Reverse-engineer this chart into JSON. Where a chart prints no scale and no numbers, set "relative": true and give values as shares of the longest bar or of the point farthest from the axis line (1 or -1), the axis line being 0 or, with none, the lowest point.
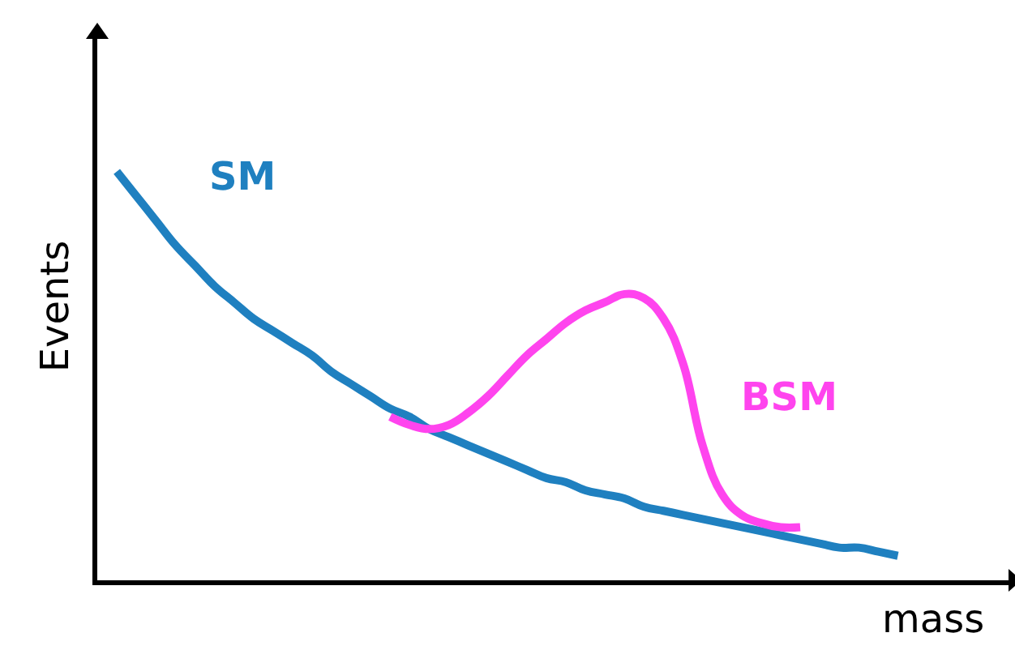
{
  "chart_data": {
    "type": "line",
    "relative": true,
    "xlabel": "mass",
    "ylabel": "Events",
    "grid": false,
    "legend": false,
    "marker": "none",
    "line_style": "solid",
    "categories": [
      null,
      null,
      null,
      null,
      null,
      null,
      null,
      null,
      null,
      null,
      null,
      null,
      null,
      null,
      null,
      null,
      null,
      null,
      null,
      null,
      null,
      null,
      null,
      null,
      null,
      null,
      null,
      null,
      null,
      null,
      null,
      null,
      null,
      null,
      null,
      null,
      null,
      null,
      null,
      null,
      null
    ],
    "series": [
      {
        "name": "SM",
        "color": "#1f80c0",
        "values": [
          1.0,
          0.94,
          0.88,
          0.82,
          0.77,
          0.72,
          0.68,
          0.64,
          0.61,
          0.58,
          0.55,
          0.51,
          0.48,
          0.45,
          0.42,
          0.4,
          0.37,
          0.35,
          0.33,
          0.31,
          0.29,
          0.27,
          0.25,
          0.24,
          0.22,
          0.21,
          0.2,
          0.18,
          0.17,
          0.16,
          0.15,
          0.14,
          0.13,
          0.12,
          0.11,
          0.1,
          0.09,
          0.08,
          0.08,
          0.07,
          0.06
        ]
      },
      {
        "name": "BSM",
        "color": "#ff44ee",
        "values": [
          null,
          null,
          null,
          null,
          null,
          null,
          null,
          null,
          null,
          null,
          null,
          null,
          null,
          null,
          0.4,
          0.38,
          0.37,
          0.38,
          0.41,
          0.45,
          0.5,
          0.55,
          0.59,
          0.63,
          0.66,
          0.68,
          0.7,
          0.69,
          0.64,
          0.53,
          0.33,
          0.21,
          0.16,
          0.14,
          0.13,
          0.13,
          null,
          null,
          null,
          null,
          null
        ]
      }
    ]
  }
}
